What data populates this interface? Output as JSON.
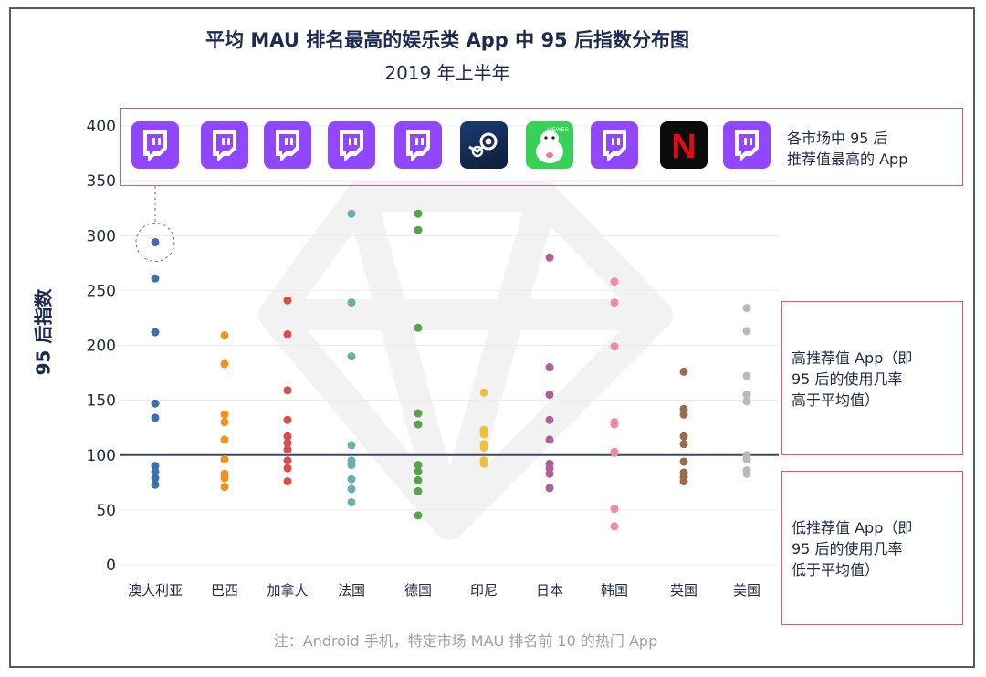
{
  "title": "平均 MAU 排名最高的娱乐类 App 中 95 后指数分布图",
  "subtitle": "2019 年上半年",
  "note": "注：Android 手机，特定市场 MAU 排名前 10 的热门 App",
  "colors": {
    "accent": "#1c2a52",
    "annotation_border": "#d4558f",
    "twitch": "#9146ff",
    "baseline": "#3a4a66"
  },
  "annotations": {
    "top": "各市场中 95 后\n推荐值最高的 App",
    "high": "高推荐值 App（即\n95 后的使用几率\n高于平均值）",
    "low": "低推荐值 App（即\n95 后的使用几率\n低于平均值）"
  },
  "top_apps": [
    {
      "market": "澳大利亚",
      "icon": "twitch-icon"
    },
    {
      "market": "巴西",
      "icon": "twitch-icon"
    },
    {
      "market": "加拿大",
      "icon": "twitch-icon"
    },
    {
      "market": "法国",
      "icon": "twitch-icon"
    },
    {
      "market": "德国",
      "icon": "twitch-icon"
    },
    {
      "market": "印尼",
      "icon": "steam-icon"
    },
    {
      "market": "日本",
      "icon": "viewer-icon",
      "text": "VIEWER"
    },
    {
      "market": "韩国",
      "icon": "twitch-icon"
    },
    {
      "market": "英国",
      "icon": "netflix-icon",
      "text": "N"
    },
    {
      "market": "美国",
      "icon": "twitch-icon"
    }
  ],
  "chart_data": {
    "type": "scatter",
    "ylabel": "95 后指数",
    "ylim": [
      0,
      400
    ],
    "yticks": [
      0,
      50,
      100,
      150,
      200,
      250,
      300,
      350,
      400
    ],
    "reference_line": 100,
    "categories": [
      "澳大利亚",
      "巴西",
      "加拿大",
      "法国",
      "德国",
      "印尼",
      "日本",
      "韩国",
      "英国",
      "美国"
    ],
    "series": [
      {
        "category": "澳大利亚",
        "color": "#3f6fa8",
        "values": [
          294,
          261,
          212,
          147,
          134,
          90,
          85,
          79,
          73
        ]
      },
      {
        "category": "巴西",
        "color": "#f0921e",
        "values": [
          209,
          183,
          137,
          130,
          114,
          96,
          83,
          79,
          71
        ]
      },
      {
        "category": "加拿大",
        "color": "#e04a4a",
        "values": [
          241,
          210,
          159,
          132,
          117,
          111,
          105,
          95,
          88,
          76
        ]
      },
      {
        "category": "法国",
        "color": "#6aaeb0",
        "values": [
          320,
          239,
          190,
          109,
          95,
          91,
          78,
          69,
          57
        ]
      },
      {
        "category": "德国",
        "color": "#5aa14e",
        "values": [
          320,
          305,
          216,
          138,
          128,
          91,
          85,
          77,
          67,
          45
        ]
      },
      {
        "category": "印尼",
        "color": "#ecc23a",
        "values": [
          157,
          123,
          119,
          110,
          107,
          95,
          92
        ]
      },
      {
        "category": "日本",
        "color": "#b05e9a",
        "values": [
          280,
          180,
          155,
          132,
          114,
          92,
          88,
          83,
          70
        ]
      },
      {
        "category": "韩国",
        "color": "#f08c9c",
        "values": [
          258,
          239,
          199,
          130,
          128,
          103,
          102,
          51,
          35
        ]
      },
      {
        "category": "英国",
        "color": "#9b6a4b",
        "values": [
          176,
          142,
          137,
          117,
          110,
          94,
          84,
          80,
          76
        ]
      },
      {
        "category": "美国",
        "color": "#bdb8b6",
        "values": [
          234,
          213,
          172,
          155,
          149,
          100,
          96,
          86,
          83
        ]
      }
    ]
  }
}
